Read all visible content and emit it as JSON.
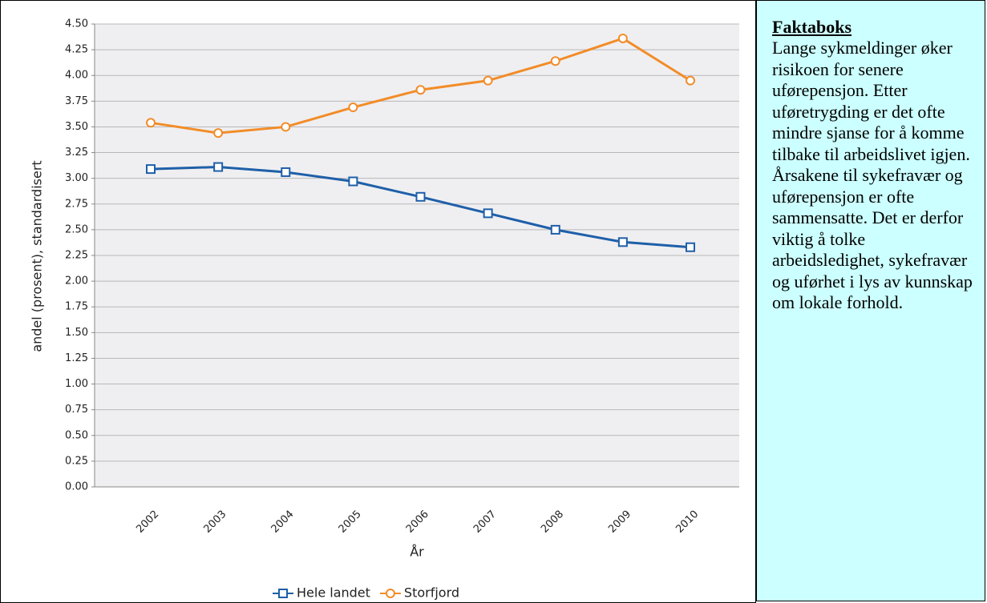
{
  "chart_data": {
    "type": "line",
    "y_label": "andel (prosent), standardisert",
    "x_label": "År",
    "categories": [
      "2002",
      "2003",
      "2004",
      "2005",
      "2006",
      "2007",
      "2008",
      "2009",
      "2010"
    ],
    "series": [
      {
        "name": "Hele landet",
        "color": "#1f5fa8",
        "marker": "square",
        "values": [
          3.09,
          3.11,
          3.06,
          2.97,
          2.82,
          2.66,
          2.5,
          2.38,
          2.33
        ]
      },
      {
        "name": "Storfjord",
        "color": "#f28c28",
        "marker": "circle",
        "values": [
          3.54,
          3.44,
          3.5,
          3.69,
          3.86,
          3.95,
          4.14,
          4.36,
          3.95
        ]
      }
    ],
    "ylim": [
      0,
      4.5
    ],
    "yticks": [
      {
        "value": 0,
        "label": "0.00"
      },
      {
        "value": 0.25,
        "label": "0.25"
      },
      {
        "value": 0.5,
        "label": "0.50"
      },
      {
        "value": 0.75,
        "label": "0.75"
      },
      {
        "value": 1,
        "label": "1.00"
      },
      {
        "value": 1.25,
        "label": "1.25"
      },
      {
        "value": 1.5,
        "label": "1.50"
      },
      {
        "value": 1.75,
        "label": "1.75"
      },
      {
        "value": 2,
        "label": "2.00"
      },
      {
        "value": 2.25,
        "label": "2.25"
      },
      {
        "value": 2.5,
        "label": "2.50"
      },
      {
        "value": 2.75,
        "label": "2.75"
      },
      {
        "value": 3,
        "label": "3.00"
      },
      {
        "value": 3.25,
        "label": "3.25"
      },
      {
        "value": 3.5,
        "label": "3.50"
      },
      {
        "value": 3.75,
        "label": "3.75"
      },
      {
        "value": 4,
        "label": "4.00"
      },
      {
        "value": 4.25,
        "label": "4.25"
      },
      {
        "value": 4.5,
        "label": "4.50"
      }
    ],
    "grid": true,
    "legend": "bottom"
  },
  "factbox": {
    "title": "Faktaboks",
    "text": "Lange sykmeldinger øker risikoen for senere uførepensjon. Etter uføretrygding er det ofte mindre sjanse for å komme tilbake til arbeidslivet igjen. Årsakene til sykefravær og uførepensjon er ofte sammensatte. Det er derfor viktig å tolke arbeidsledighet, sykefravær og uførhet i lys av kunnskap om lokale forhold."
  }
}
